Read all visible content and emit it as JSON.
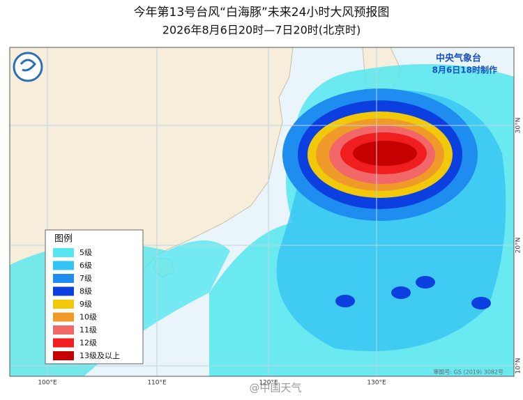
{
  "header": {
    "title": "今年第13号台风“白海豚”未来24小时大风预报图",
    "subtitle": "2026年8月6日20时—7日20时(北京时)"
  },
  "agency": {
    "name": "中央气象台",
    "issued": "8月6日18时制作"
  },
  "legend": {
    "title": "图例",
    "items": [
      {
        "label": "5级",
        "color": "#55e6ef"
      },
      {
        "label": "6级",
        "color": "#34c3f2"
      },
      {
        "label": "7级",
        "color": "#1f8cf0"
      },
      {
        "label": "8级",
        "color": "#0b3fe0"
      },
      {
        "label": "9级",
        "color": "#f2c80a"
      },
      {
        "label": "10级",
        "color": "#f09a2a"
      },
      {
        "label": "11级",
        "color": "#f26868"
      },
      {
        "label": "12级",
        "color": "#f01e1e"
      },
      {
        "label": "13级及以上",
        "color": "#c40000"
      }
    ]
  },
  "longitudes": [
    "100°E",
    "110°E",
    "120°E",
    "130°E"
  ],
  "latitudes": [
    "30°N",
    "20°N",
    "10°N"
  ],
  "map_number": "审图号: GS (2019) 3082号",
  "watermark": "@中国天气"
}
